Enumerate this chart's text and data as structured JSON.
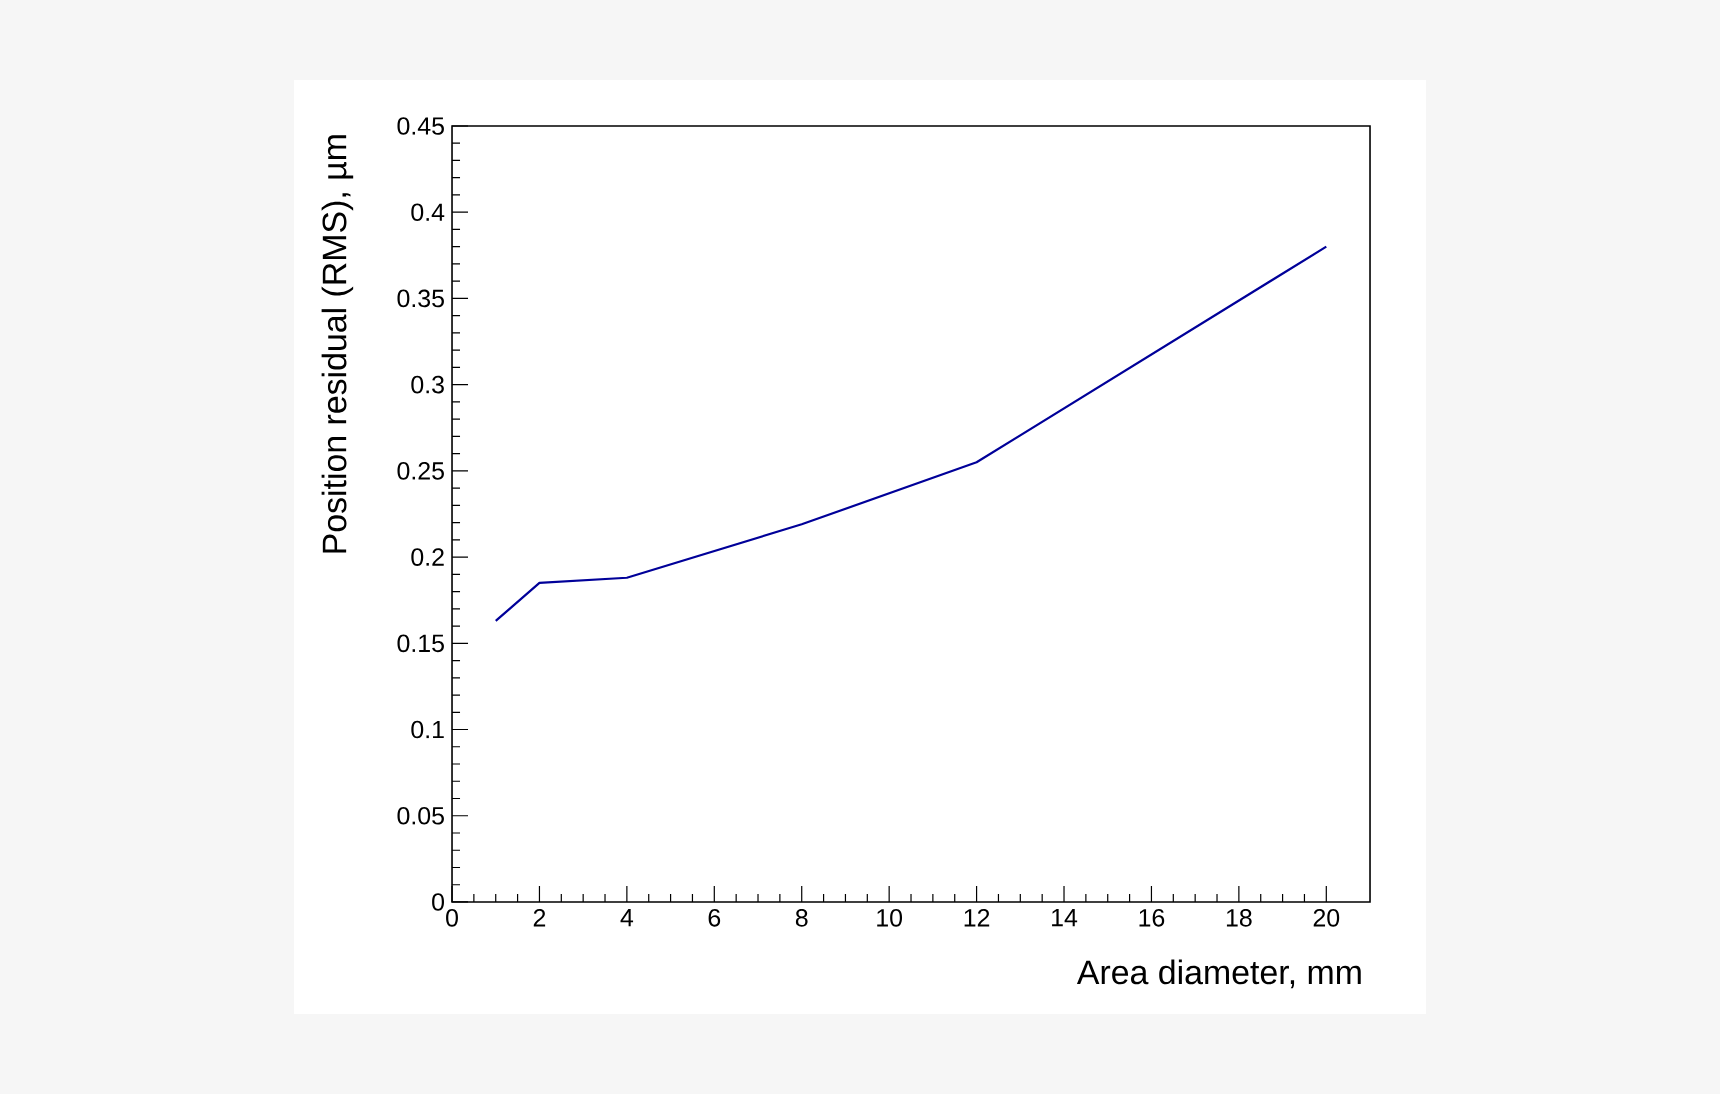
{
  "chart_data": {
    "type": "line",
    "xlabel": "Area diameter, mm",
    "ylabel": "Position residual (RMS), µm",
    "x": [
      1,
      2,
      4,
      8,
      12,
      20
    ],
    "series": [
      {
        "color": "#000099",
        "values": [
          0.163,
          0.185,
          0.188,
          0.219,
          0.255,
          0.38
        ]
      }
    ],
    "xlim": [
      0,
      21
    ],
    "ylim": [
      0,
      0.45
    ],
    "xticks": [
      0,
      2,
      4,
      6,
      8,
      10,
      12,
      14,
      16,
      18,
      20
    ],
    "yticks": [
      0,
      0.05,
      0.1,
      0.15,
      0.2,
      0.25,
      0.3,
      0.35,
      0.4,
      0.45
    ],
    "marker": "none",
    "line_style": "solid"
  }
}
